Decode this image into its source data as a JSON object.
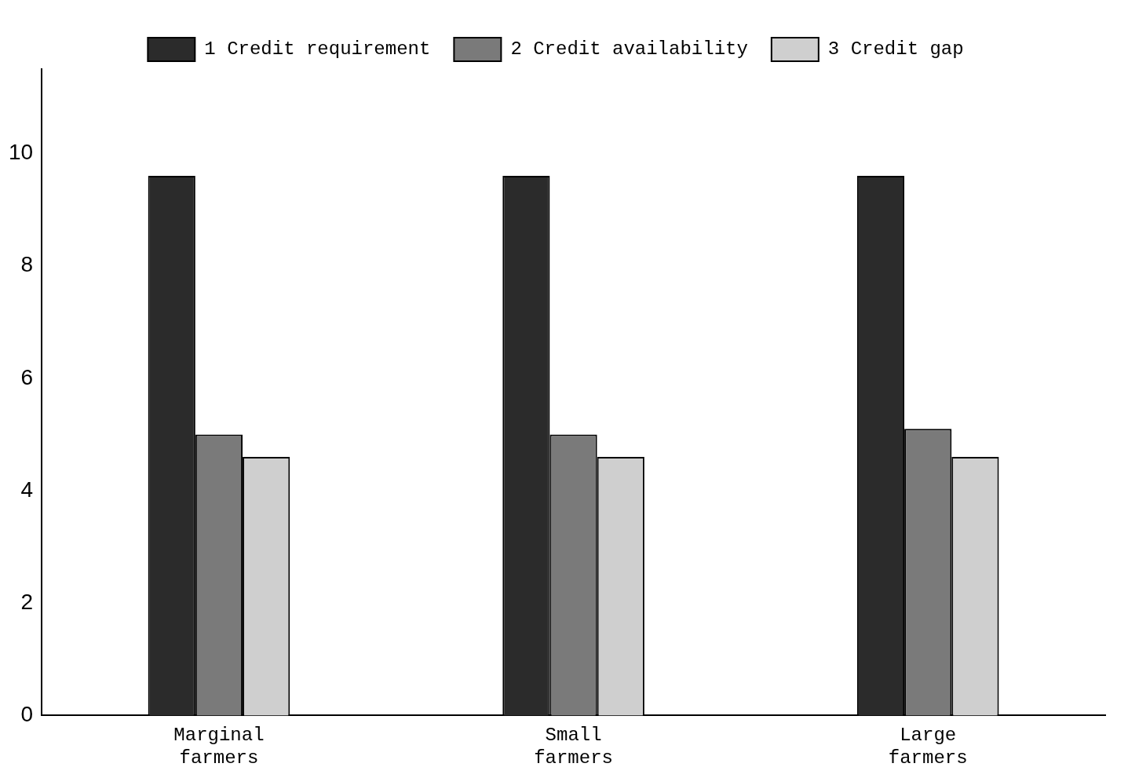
{
  "chart_data": {
    "type": "bar",
    "categories": [
      "Marginal farmers",
      "Small farmers",
      "Large farmers"
    ],
    "series": [
      {
        "name": "1 Credit requirement",
        "color": "#2b2b2b",
        "values": [
          9.6,
          9.6,
          9.6
        ]
      },
      {
        "name": "2 Credit availability",
        "color": "#7a7a7a",
        "values": [
          5.0,
          5.0,
          5.1
        ]
      },
      {
        "name": "3 Credit gap",
        "color": "#cfcfcf",
        "values": [
          4.6,
          4.6,
          4.6
        ]
      }
    ],
    "ylim": [
      0,
      11.5
    ],
    "yticks": [
      0,
      2,
      4,
      6,
      8,
      10
    ],
    "grid": false,
    "legend": "top"
  }
}
